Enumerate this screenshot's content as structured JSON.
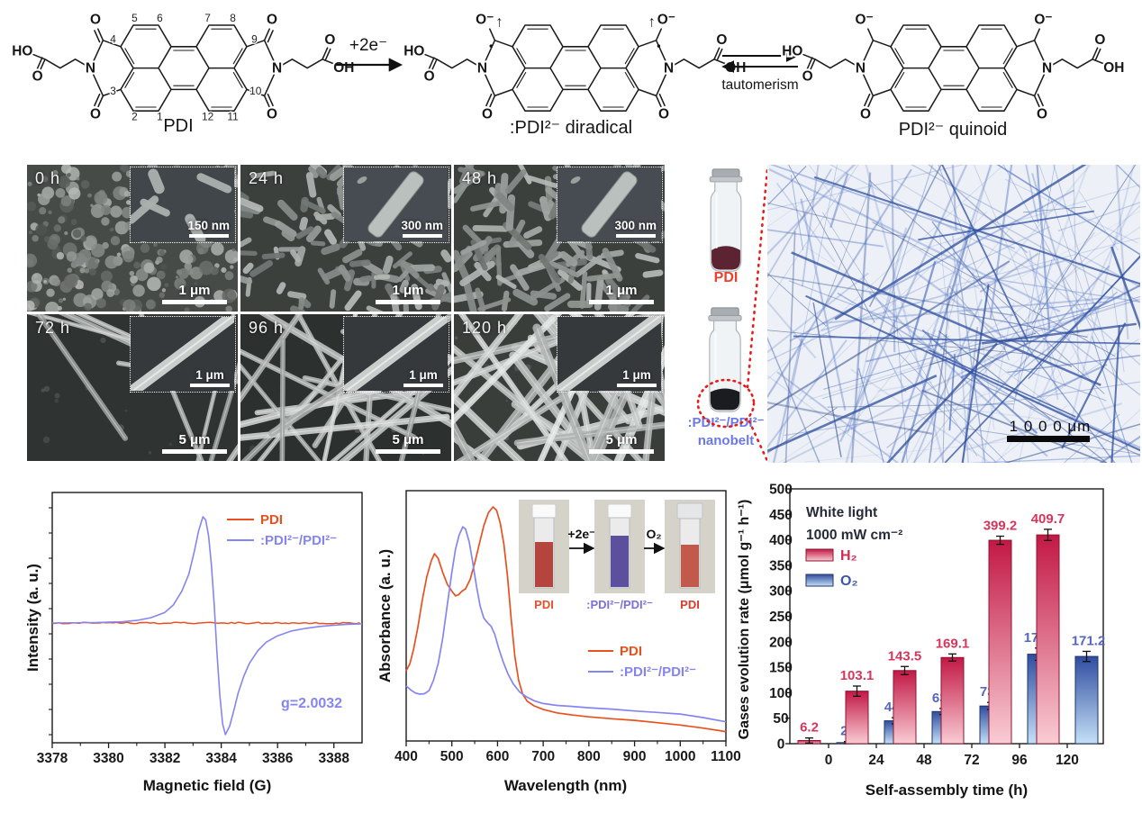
{
  "reaction_scheme": {
    "molecules": [
      {
        "name": "PDI"
      },
      {
        "name": ":PDI²⁻ diradical"
      },
      {
        "name": "PDI²⁻ quinoid"
      }
    ],
    "ring_numbers": [
      "5",
      "6",
      "7",
      "8",
      "4",
      "9",
      "3",
      "10",
      "2",
      "1",
      "12",
      "11"
    ],
    "atoms": {
      "ho": "HO",
      "oh": "OH",
      "o": "O",
      "n": "N",
      "o_minus": "O⁻",
      "spin_arrow": "↑"
    },
    "electron_arrow_label": "+2e⁻",
    "equilibrium_label": "tautomerism"
  },
  "sem_panels": [
    {
      "label": "0 h",
      "inset_scale": "150 nm",
      "main_scale": "1 μm"
    },
    {
      "label": "24 h",
      "inset_scale": "300 nm",
      "main_scale": "1 μm"
    },
    {
      "label": "48 h",
      "inset_scale": "300 nm",
      "main_scale": "1 μm"
    },
    {
      "label": "72 h",
      "inset_scale": "1 μm",
      "main_scale": "5 μm"
    },
    {
      "label": "96 h",
      "inset_scale": "1 μm",
      "main_scale": "5 μm"
    },
    {
      "label": "120 h",
      "inset_scale": "1 μm",
      "main_scale": "5 μm"
    }
  ],
  "vials": {
    "top_label": "PDI",
    "top_label_color": "#e8432f",
    "bottom_label_line1": ":PDI²⁻/PDI²⁻",
    "bottom_label_line2": "nanobelt",
    "bottom_label_color": "#6b79e8"
  },
  "optical_image": {
    "scale_label": "1 0 0 0 μm"
  },
  "chart_data": [
    {
      "type": "line",
      "name": "EPR spectrum",
      "xlabel": "Magnetic field (G)",
      "ylabel": "Intensity (a. u.)",
      "xlim": [
        3378,
        3389
      ],
      "xticks": [
        3378,
        3380,
        3382,
        3384,
        3386,
        3388
      ],
      "annotation": "g=2.0032",
      "legend_position": "top-right",
      "series": [
        {
          "name": "PDI",
          "color": "#e8511f",
          "style": "flat-noise",
          "points": [
            [
              3378,
              0
            ],
            [
              3389,
              0
            ]
          ]
        },
        {
          "name": ":PDI²⁻/PDI²⁻",
          "color": "#8585f2",
          "style": "derivative",
          "points": [
            [
              3378,
              0
            ],
            [
              3379.5,
              0.004
            ],
            [
              3380.5,
              0.012
            ],
            [
              3381,
              0.025
            ],
            [
              3381.5,
              0.05
            ],
            [
              3382,
              0.1
            ],
            [
              3382.3,
              0.17
            ],
            [
              3382.6,
              0.3
            ],
            [
              3382.85,
              0.46
            ],
            [
              3383.05,
              0.68
            ],
            [
              3383.2,
              0.87
            ],
            [
              3383.35,
              1.0
            ],
            [
              3383.45,
              0.97
            ],
            [
              3383.55,
              0.82
            ],
            [
              3383.65,
              0.55
            ],
            [
              3383.75,
              0.18
            ],
            [
              3383.85,
              -0.28
            ],
            [
              3383.95,
              -0.68
            ],
            [
              3384.05,
              -0.95
            ],
            [
              3384.15,
              -1.05
            ],
            [
              3384.3,
              -0.97
            ],
            [
              3384.45,
              -0.82
            ],
            [
              3384.6,
              -0.66
            ],
            [
              3384.8,
              -0.5
            ],
            [
              3385,
              -0.38
            ],
            [
              3385.3,
              -0.26
            ],
            [
              3385.6,
              -0.18
            ],
            [
              3386,
              -0.12
            ],
            [
              3386.5,
              -0.075
            ],
            [
              3387,
              -0.05
            ],
            [
              3387.5,
              -0.032
            ],
            [
              3388,
              -0.02
            ],
            [
              3388.5,
              -0.012
            ],
            [
              3389,
              -0.008
            ]
          ]
        }
      ]
    },
    {
      "type": "line",
      "name": "UV-Vis absorption spectra",
      "xlabel": "Wavelength (nm)",
      "ylabel": "Absorbance (a. u.)",
      "xlim": [
        400,
        1100
      ],
      "xticks": [
        400,
        500,
        600,
        700,
        800,
        900,
        1000,
        1100
      ],
      "series": [
        {
          "name": "PDI",
          "color": "#e8511f",
          "points": [
            [
              400,
              0.3
            ],
            [
              408,
              0.33
            ],
            [
              416,
              0.39
            ],
            [
              425,
              0.48
            ],
            [
              435,
              0.6
            ],
            [
              445,
              0.7
            ],
            [
              455,
              0.77
            ],
            [
              462,
              0.8
            ],
            [
              470,
              0.78
            ],
            [
              480,
              0.72
            ],
            [
              490,
              0.67
            ],
            [
              500,
              0.64
            ],
            [
              508,
              0.62
            ],
            [
              515,
              0.625
            ],
            [
              522,
              0.64
            ],
            [
              530,
              0.65
            ],
            [
              540,
              0.69
            ],
            [
              550,
              0.76
            ],
            [
              560,
              0.84
            ],
            [
              570,
              0.92
            ],
            [
              580,
              0.975
            ],
            [
              590,
              1.0
            ],
            [
              598,
              0.985
            ],
            [
              606,
              0.93
            ],
            [
              614,
              0.84
            ],
            [
              622,
              0.7
            ],
            [
              630,
              0.52
            ],
            [
              638,
              0.36
            ],
            [
              646,
              0.26
            ],
            [
              655,
              0.2
            ],
            [
              665,
              0.17
            ],
            [
              680,
              0.15
            ],
            [
              700,
              0.135
            ],
            [
              730,
              0.12
            ],
            [
              760,
              0.112
            ],
            [
              800,
              0.103
            ],
            [
              850,
              0.095
            ],
            [
              900,
              0.088
            ],
            [
              950,
              0.078
            ],
            [
              1000,
              0.068
            ],
            [
              1050,
              0.055
            ],
            [
              1100,
              0.04
            ]
          ]
        },
        {
          "name": ":PDI²⁻/PDI²⁻",
          "color": "#8585f2",
          "points": [
            [
              400,
              0.235
            ],
            [
              410,
              0.218
            ],
            [
              420,
              0.205
            ],
            [
              430,
              0.2
            ],
            [
              440,
              0.202
            ],
            [
              450,
              0.215
            ],
            [
              460,
              0.26
            ],
            [
              470,
              0.33
            ],
            [
              480,
              0.44
            ],
            [
              490,
              0.58
            ],
            [
              500,
              0.72
            ],
            [
              508,
              0.82
            ],
            [
              516,
              0.88
            ],
            [
              524,
              0.915
            ],
            [
              530,
              0.905
            ],
            [
              538,
              0.85
            ],
            [
              546,
              0.76
            ],
            [
              554,
              0.66
            ],
            [
              562,
              0.575
            ],
            [
              570,
              0.525
            ],
            [
              578,
              0.505
            ],
            [
              586,
              0.49
            ],
            [
              594,
              0.455
            ],
            [
              602,
              0.4
            ],
            [
              612,
              0.34
            ],
            [
              622,
              0.29
            ],
            [
              634,
              0.245
            ],
            [
              648,
              0.21
            ],
            [
              662,
              0.19
            ],
            [
              680,
              0.172
            ],
            [
              700,
              0.16
            ],
            [
              730,
              0.152
            ],
            [
              760,
              0.148
            ],
            [
              800,
              0.142
            ],
            [
              850,
              0.136
            ],
            [
              900,
              0.128
            ],
            [
              950,
              0.122
            ],
            [
              1000,
              0.115
            ],
            [
              1050,
              0.1
            ],
            [
              1100,
              0.082
            ]
          ]
        }
      ],
      "inset_photos": {
        "labels": [
          "PDI",
          ":PDI²⁻/PDI²⁻",
          "PDI"
        ],
        "label_colors": [
          "#e8512b",
          "#7a6ee0",
          "#e03a2a"
        ],
        "arrow_labels": [
          "+2e⁻",
          "O₂"
        ],
        "liquid_colors": [
          "#b4453e",
          "#5c4f9e",
          "#c25a4b"
        ]
      }
    },
    {
      "type": "bar",
      "name": "Photocatalytic gas evolution",
      "categories": [
        "0",
        "24",
        "48",
        "72",
        "96",
        "120"
      ],
      "series": [
        {
          "name": "H₂",
          "values": [
            6.2,
            103.1,
            143.5,
            169.1,
            399.2,
            409.7
          ],
          "labels": [
            "6.2",
            "103.1",
            "143.5",
            "169.1",
            "399.2",
            "409.7"
          ],
          "errors": [
            5,
            10,
            8,
            7,
            8,
            11
          ],
          "color_dark": "#c21845",
          "color_light": "#f9ccd4",
          "border": "#8c1430",
          "label_color": "#d6365c",
          "legend_text_color": "#d22a52"
        },
        {
          "name": "O₂",
          "values": [
            2.1,
            44.9,
            63.1,
            73.9,
            175.6,
            171.2
          ],
          "labels": [
            "2.1",
            "44.9",
            "63.1",
            "73.9",
            "175.6",
            "171.2"
          ],
          "errors": [
            2,
            6,
            6,
            7,
            12,
            10
          ],
          "color_dark": "#2f4da0",
          "color_light": "#c4e0f7",
          "border": "#1f3566",
          "label_color": "#5566bf",
          "legend_text_color": "#3c55a8"
        }
      ],
      "ylabel": "Gases evolution rate (μmol g⁻¹ h⁻¹)",
      "xlabel": "Self-assembly time (h)",
      "ylim": [
        0,
        500
      ],
      "ytick_step": 50,
      "annotations": [
        "White light",
        "1000 mW cm⁻²"
      ]
    }
  ]
}
